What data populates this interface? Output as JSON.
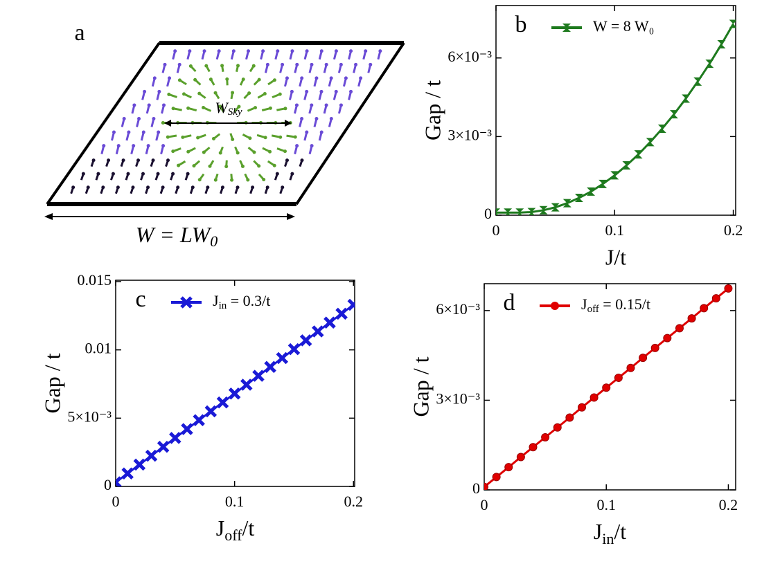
{
  "diagram": {
    "label": "a",
    "width_label": [
      "W = LW",
      "0"
    ],
    "size_label": [
      "W",
      "Sky"
    ]
  },
  "chart_data": [
    {
      "type": "line",
      "panel_label": "b",
      "xlabel": "J/t",
      "ylabel": "Gap / t",
      "xlim": [
        0,
        0.202
      ],
      "ylim": [
        0,
        0.008
      ],
      "xticks": [
        0,
        0.1,
        0.2
      ],
      "yticks": [
        0,
        {
          "value": 0.003,
          "label": "3×10⁻³"
        },
        {
          "value": 0.006,
          "label": "6×10⁻³"
        }
      ],
      "marker": "bowtie",
      "x": [
        0,
        0.01,
        0.02,
        0.03,
        0.04,
        0.05,
        0.06,
        0.07,
        0.08,
        0.09,
        0.1,
        0.11,
        0.12,
        0.13,
        0.14,
        0.15,
        0.16,
        0.17,
        0.18,
        0.19,
        0.2
      ],
      "series": [
        {
          "name": "W = 8 W₀",
          "color": "#1e7a1e",
          "values": [
            0.0001,
            0.0001,
            0.0001,
            0.00012,
            0.00019,
            0.0003,
            0.00046,
            0.00066,
            0.0009,
            0.00119,
            0.00152,
            0.0019,
            0.00232,
            0.00279,
            0.0033,
            0.00385,
            0.00445,
            0.0051,
            0.00578,
            0.00652,
            0.0073
          ]
        }
      ]
    },
    {
      "type": "line",
      "panel_label": "c",
      "xlabel": [
        "J",
        "off",
        "/t"
      ],
      "ylabel": "Gap / t",
      "xlim": [
        0,
        0.201
      ],
      "ylim": [
        0,
        0.0151
      ],
      "xticks": [
        0,
        0.1,
        0.2
      ],
      "yticks": [
        0,
        {
          "value": 0.005,
          "label": "5×10⁻³"
        },
        0.01,
        0.015
      ],
      "marker": "cross",
      "x": [
        0,
        0.01,
        0.02,
        0.03,
        0.04,
        0.05,
        0.06,
        0.07,
        0.08,
        0.09,
        0.1,
        0.11,
        0.12,
        0.13,
        0.14,
        0.15,
        0.16,
        0.17,
        0.18,
        0.19,
        0.2
      ],
      "series": [
        {
          "name": [
            "J",
            "in",
            " = 0.3/t"
          ],
          "color": "#1a1ad6",
          "values": [
            0.0003,
            0.00095,
            0.0016,
            0.00225,
            0.0029,
            0.00355,
            0.0042,
            0.00485,
            0.0055,
            0.00615,
            0.0068,
            0.00745,
            0.0081,
            0.00875,
            0.0094,
            0.01005,
            0.0107,
            0.01135,
            0.012,
            0.01265,
            0.0133
          ]
        }
      ]
    },
    {
      "type": "line",
      "panel_label": "d",
      "xlabel": [
        "J",
        "in",
        "/t"
      ],
      "ylabel": "Gap / t",
      "xlim": [
        0,
        0.206
      ],
      "ylim": [
        0,
        0.0069
      ],
      "xticks": [
        0,
        0.1,
        0.2
      ],
      "yticks": [
        0,
        {
          "value": 0.003,
          "label": "3×10⁻³"
        },
        {
          "value": 0.006,
          "label": "6×10⁻³"
        }
      ],
      "marker": "circle",
      "x": [
        0,
        0.01,
        0.02,
        0.03,
        0.04,
        0.05,
        0.06,
        0.07,
        0.08,
        0.09,
        0.1,
        0.11,
        0.12,
        0.13,
        0.14,
        0.15,
        0.16,
        0.17,
        0.18,
        0.19,
        0.2
      ],
      "series": [
        {
          "name": [
            "J",
            "off",
            " = 0.15/t"
          ],
          "color": "#e00000",
          "values": [
            0.0001,
            0.00043,
            0.00076,
            0.0011,
            0.00143,
            0.00176,
            0.00209,
            0.00242,
            0.00276,
            0.00309,
            0.00342,
            0.00375,
            0.00408,
            0.00442,
            0.00475,
            0.00508,
            0.00541,
            0.00574,
            0.00608,
            0.00641,
            0.00674
          ]
        }
      ]
    }
  ]
}
